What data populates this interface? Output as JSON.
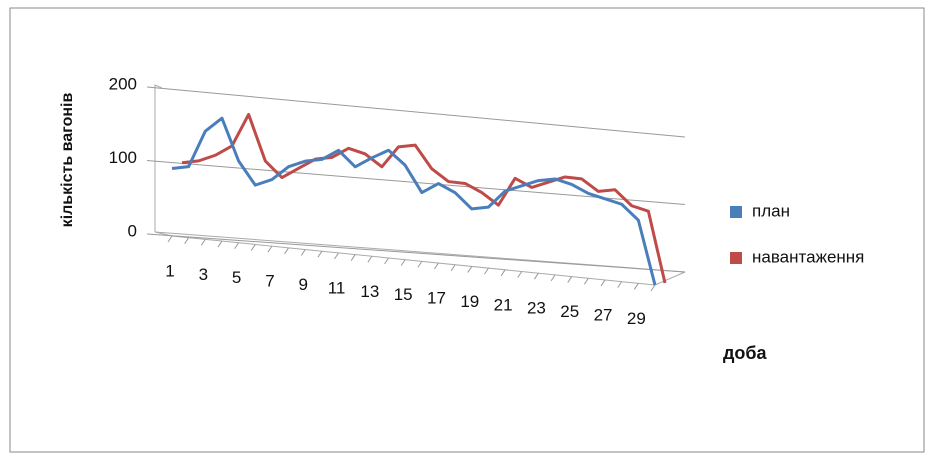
{
  "chart_data": {
    "type": "line",
    "x_label": "доба",
    "y_label": "кількість вагонів",
    "categories": [
      "1",
      null,
      "3",
      null,
      "5",
      null,
      "7",
      null,
      "9",
      null,
      "11",
      null,
      "13",
      null,
      "15",
      null,
      "17",
      null,
      "19",
      null,
      "21",
      null,
      "23",
      null,
      "25",
      null,
      "27",
      null,
      "29",
      null
    ],
    "series": [
      {
        "name": "план",
        "color": "#4a7ebb",
        "values": [
          90,
          95,
          145,
          165,
          110,
          80,
          90,
          110,
          120,
          125,
          140,
          120,
          135,
          148,
          130,
          95,
          110,
          100,
          80,
          85,
          110,
          120,
          130,
          135,
          130,
          120,
          115,
          110,
          90,
          0
        ]
      },
      {
        "name": "навантаження",
        "color": "#be4b48",
        "values": [
          95,
          100,
          110,
          125,
          170,
          110,
          90,
          105,
          120,
          125,
          140,
          135,
          120,
          150,
          155,
          125,
          110,
          110,
          100,
          85,
          125,
          115,
          125,
          135,
          135,
          120,
          125,
          105,
          100,
          0
        ]
      }
    ],
    "ylim": [
      0,
      200
    ],
    "yticks": [
      0,
      100,
      200
    ],
    "grid": true,
    "legend": "right"
  }
}
